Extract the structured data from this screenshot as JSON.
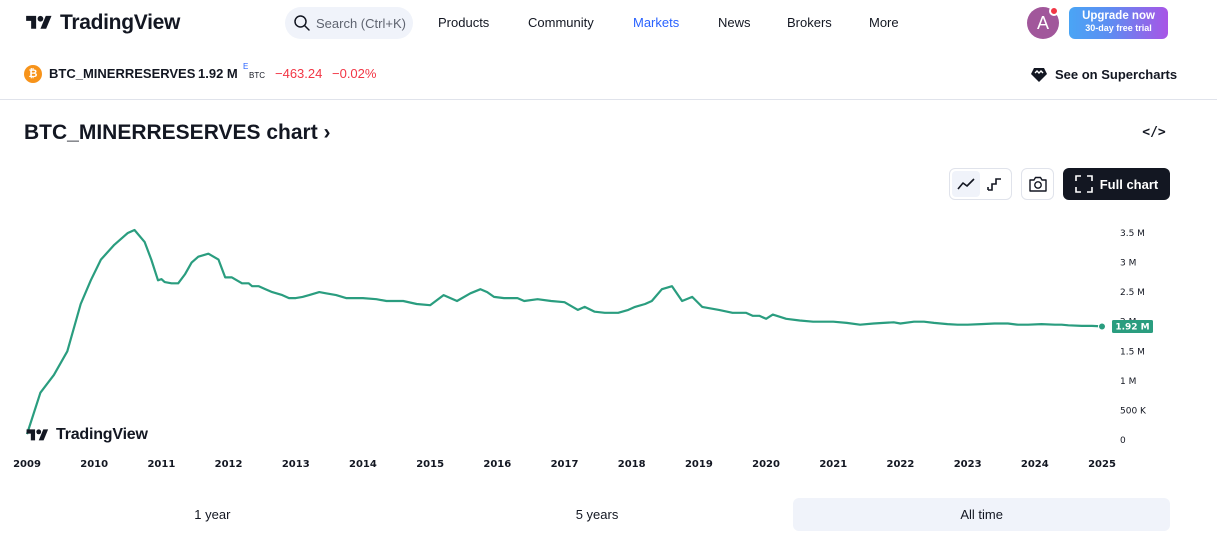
{
  "header": {
    "brand": "TradingView",
    "search_placeholder": "Search (Ctrl+K)",
    "nav": [
      "Products",
      "Community",
      "Markets",
      "News",
      "Brokers",
      "More"
    ],
    "active_nav": "Markets",
    "avatar_letter": "A",
    "upgrade_title": "Upgrade now",
    "upgrade_subtitle": "30-day free trial"
  },
  "symbol": {
    "name": "BTC_MINERRESERVES",
    "value": "1.92 M",
    "flag": "E",
    "currency": "BTC",
    "change": "−463.24",
    "change_percent": "−0.02%",
    "supercharts_label": "See on Supercharts"
  },
  "chart_section": {
    "title": "BTC_MINERRESERVES chart ›",
    "embed_label": "</>",
    "full_chart_label": "Full chart",
    "watermark": "TradingView"
  },
  "range_selector": {
    "options": [
      "1 year",
      "5 years",
      "All time"
    ],
    "selected": "All time"
  },
  "colors": {
    "line": "#2a9d7f",
    "accent": "#2962ff",
    "negative": "#f23645",
    "dark": "#131722"
  },
  "chart_data": {
    "type": "line",
    "series": [
      {
        "x": [
          2009.0,
          2009.2,
          2009.4,
          2009.6,
          2009.8,
          2009.95,
          2010.1,
          2010.3,
          2010.5,
          2010.6,
          2010.75,
          2010.85,
          2010.95,
          2011.0,
          2011.05,
          2011.15,
          2011.25,
          2011.35,
          2011.45,
          2011.55,
          2011.7,
          2011.85,
          2011.95,
          2012.05,
          2012.2,
          2012.3,
          2012.35,
          2012.45,
          2012.55,
          2012.65,
          2012.8,
          2012.9,
          2013.0,
          2013.1,
          2013.2,
          2013.35,
          2013.45,
          2013.6,
          2013.75,
          2014.0,
          2014.2,
          2014.35,
          2014.6,
          2014.8,
          2015.0,
          2015.2,
          2015.4,
          2015.6,
          2015.75,
          2015.85,
          2015.95,
          2016.1,
          2016.3,
          2016.4,
          2016.6,
          2016.8,
          2017.0,
          2017.2,
          2017.3,
          2017.45,
          2017.6,
          2017.8,
          2017.95,
          2018.05,
          2018.2,
          2018.3,
          2018.45,
          2018.6,
          2018.75,
          2018.9,
          2019.05,
          2019.3,
          2019.5,
          2019.6,
          2019.7,
          2019.8,
          2019.9,
          2020.0,
          2020.1,
          2020.3,
          2020.5,
          2020.7,
          2020.85,
          2021.0,
          2021.2,
          2021.4,
          2021.6,
          2021.75,
          2021.9,
          2022.0,
          2022.2,
          2022.35,
          2022.5,
          2022.7,
          2022.85,
          2023.0,
          2023.2,
          2023.4,
          2023.6,
          2023.75,
          2023.9,
          2024.1,
          2024.3,
          2024.4,
          2024.5,
          2024.7,
          2024.85,
          2025.0
        ],
        "y": [
          0.1,
          0.8,
          1.1,
          1.5,
          2.3,
          2.7,
          3.05,
          3.3,
          3.5,
          3.55,
          3.35,
          3.05,
          2.7,
          2.72,
          2.67,
          2.65,
          2.65,
          2.8,
          3.0,
          3.1,
          3.15,
          3.05,
          2.75,
          2.75,
          2.65,
          2.65,
          2.6,
          2.6,
          2.55,
          2.5,
          2.45,
          2.4,
          2.4,
          2.42,
          2.45,
          2.5,
          2.48,
          2.45,
          2.4,
          2.4,
          2.38,
          2.35,
          2.35,
          2.3,
          2.28,
          2.45,
          2.35,
          2.48,
          2.55,
          2.5,
          2.42,
          2.4,
          2.4,
          2.35,
          2.38,
          2.35,
          2.33,
          2.2,
          2.25,
          2.17,
          2.15,
          2.15,
          2.2,
          2.25,
          2.3,
          2.35,
          2.55,
          2.6,
          2.35,
          2.42,
          2.25,
          2.2,
          2.15,
          2.15,
          2.15,
          2.1,
          2.1,
          2.05,
          2.12,
          2.05,
          2.02,
          2.0,
          2.0,
          2.0,
          1.98,
          1.95,
          1.97,
          1.98,
          1.99,
          1.97,
          2.0,
          2.0,
          1.98,
          1.96,
          1.95,
          1.95,
          1.96,
          1.97,
          1.97,
          1.95,
          1.95,
          1.96,
          1.95,
          1.95,
          1.94,
          1.93,
          1.93,
          1.92
        ]
      }
    ],
    "yticks": [
      "3.5 M",
      "3 M",
      "2.5 M",
      "2 M",
      "1.5 M",
      "1 M",
      "500 K",
      "0"
    ],
    "ytick_values": [
      3.5,
      3.0,
      2.5,
      2.0,
      1.5,
      1.0,
      0.5,
      0
    ],
    "xticks": [
      "2009",
      "2010",
      "2011",
      "2012",
      "2013",
      "2014",
      "2015",
      "2016",
      "2017",
      "2018",
      "2019",
      "2020",
      "2021",
      "2022",
      "2023",
      "2024",
      "2025"
    ],
    "xtick_values": [
      2009,
      2010,
      2011,
      2012,
      2013,
      2014,
      2015,
      2016,
      2017,
      2018,
      2019,
      2020,
      2021,
      2022,
      2023,
      2024,
      2025
    ],
    "last_value_label": "1.92 M",
    "xlim": [
      2009,
      2025
    ],
    "ylim": [
      0,
      3.5
    ],
    "y_unit": "M",
    "grid": false
  }
}
